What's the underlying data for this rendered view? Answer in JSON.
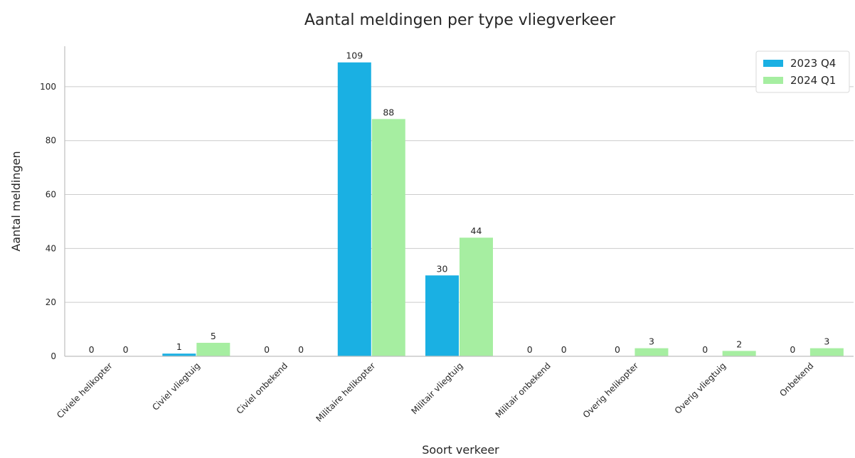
{
  "chart_data": {
    "type": "bar",
    "title": "Aantal meldingen per type vliegverkeer",
    "xlabel": "Soort verkeer",
    "ylabel": "Aantal meldingen",
    "categories": [
      "Civiele helikopter",
      "Civiel vliegtuig",
      "Civiel onbekend",
      "Militaire helikopter",
      "Militair vliegtuig",
      "Militair onbekend",
      "Overig helikopter",
      "Overig vliegtuig",
      "Onbekend"
    ],
    "series": [
      {
        "name": "2023 Q4",
        "color": "#1ab0e3",
        "values": [
          0,
          1,
          0,
          109,
          30,
          0,
          0,
          0,
          0
        ]
      },
      {
        "name": "2024 Q1",
        "color": "#a6eea1",
        "values": [
          0,
          5,
          0,
          88,
          44,
          0,
          3,
          2,
          3
        ]
      }
    ],
    "yticks": [
      0,
      20,
      40,
      60,
      80,
      100
    ],
    "ylim": [
      0,
      115
    ],
    "grid": "horizontal",
    "legend": "top-right",
    "data_labels": true
  }
}
